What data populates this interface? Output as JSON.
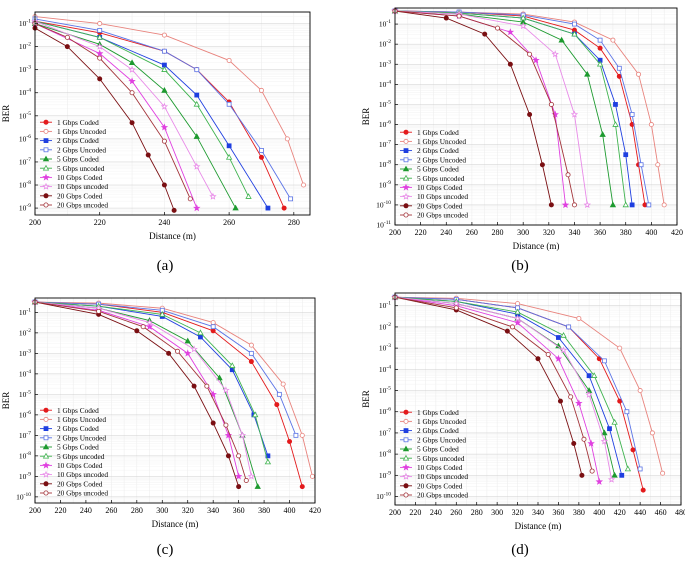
{
  "chart_data": [
    {
      "panel_label": "(a)",
      "type": "line",
      "xlabel": "Distance (m)",
      "ylabel": "BER",
      "xlim": [
        200,
        285
      ],
      "ylim_exp": [
        -9.3,
        -0.5
      ],
      "xticks": [
        200,
        220,
        240,
        260,
        280
      ],
      "yticks_exp": [
        -1,
        -2,
        -3,
        -4,
        -5,
        -6,
        -7,
        -8,
        -9
      ],
      "legend_position": "lower-left",
      "grid": true,
      "series": [
        {
          "name": "1 Gbps Coded",
          "color": "#e31a1c",
          "marker": "filled-circle",
          "x": [
            200,
            220,
            240,
            250,
            260,
            270,
            277
          ],
          "y_exp": [
            -0.9,
            -1.4,
            -2.2,
            -3.0,
            -4.4,
            -6.8,
            -9.0
          ]
        },
        {
          "name": "1 Gbps Uncoded",
          "color": "#e8837d",
          "marker": "open-circle",
          "x": [
            200,
            220,
            240,
            260,
            270,
            278,
            283
          ],
          "y_exp": [
            -0.7,
            -1.0,
            -1.5,
            -2.6,
            -3.9,
            -6.0,
            -8.0
          ]
        },
        {
          "name": "2 Gbps Coded",
          "color": "#1f3fe0",
          "marker": "filled-square",
          "x": [
            200,
            220,
            240,
            250,
            260,
            272
          ],
          "y_exp": [
            -0.9,
            -1.6,
            -2.8,
            -4.1,
            -6.3,
            -9.0
          ]
        },
        {
          "name": "2 Gbps Uncoded",
          "color": "#5b74e6",
          "marker": "open-square",
          "x": [
            200,
            220,
            240,
            250,
            260,
            270,
            279
          ],
          "y_exp": [
            -0.8,
            -1.3,
            -2.2,
            -3.0,
            -4.5,
            -6.5,
            -8.6
          ]
        },
        {
          "name": "5 Gbps Coded",
          "color": "#1d9a2f",
          "marker": "filled-triangle",
          "x": [
            200,
            220,
            230,
            240,
            250,
            262
          ],
          "y_exp": [
            -1.0,
            -1.9,
            -2.7,
            -3.9,
            -5.9,
            -9.0
          ]
        },
        {
          "name": "5 Gbps uncoded",
          "color": "#3fb34f",
          "marker": "open-triangle",
          "x": [
            200,
            220,
            240,
            250,
            260,
            266
          ],
          "y_exp": [
            -0.9,
            -1.6,
            -3.0,
            -4.5,
            -6.8,
            -8.5
          ]
        },
        {
          "name": "10 Gbps Coded",
          "color": "#e040e0",
          "marker": "filled-star",
          "x": [
            200,
            220,
            230,
            240,
            250
          ],
          "y_exp": [
            -1.0,
            -2.3,
            -3.5,
            -5.5,
            -9.0
          ]
        },
        {
          "name": "10 Gbps uncoded",
          "color": "#e88ae8",
          "marker": "open-star",
          "x": [
            200,
            220,
            230,
            240,
            250,
            255
          ],
          "y_exp": [
            -0.9,
            -2.0,
            -3.0,
            -4.6,
            -7.2,
            -8.5
          ]
        },
        {
          "name": "20 Gbps Coded",
          "color": "#7a0f12",
          "marker": "filled-circle",
          "x": [
            200,
            210,
            220,
            230,
            235,
            240,
            243
          ],
          "y_exp": [
            -1.2,
            -2.0,
            -3.4,
            -5.3,
            -6.7,
            -8.0,
            -9.1
          ]
        },
        {
          "name": "20 Gbps uncoded",
          "color": "#a3343a",
          "marker": "open-circle",
          "x": [
            200,
            210,
            220,
            230,
            240,
            248
          ],
          "y_exp": [
            -1.0,
            -1.6,
            -2.5,
            -4.0,
            -6.1,
            -8.6
          ]
        }
      ]
    },
    {
      "panel_label": "(b)",
      "type": "line",
      "xlabel": "Distance (m)",
      "ylabel": "BER",
      "xlim": [
        200,
        420
      ],
      "ylim_exp": [
        -11,
        -0.2
      ],
      "xticks": [
        200,
        220,
        240,
        260,
        280,
        300,
        320,
        340,
        360,
        380,
        400,
        420
      ],
      "yticks_exp": [
        -1,
        -2,
        -3,
        -4,
        -5,
        -6,
        -7,
        -8,
        -9,
        -10,
        -11
      ],
      "legend_position": "lower-left",
      "grid": true,
      "series": [
        {
          "name": "1 Gbps Coded",
          "color": "#e31a1c",
          "marker": "filled-circle",
          "x": [
            200,
            250,
            300,
            340,
            360,
            375,
            385,
            390,
            395
          ],
          "y_exp": [
            -0.35,
            -0.4,
            -0.6,
            -1.3,
            -2.2,
            -3.6,
            -6.0,
            -8.0,
            -10.0
          ]
        },
        {
          "name": "1 Gbps Uncoded",
          "color": "#e8837d",
          "marker": "open-circle",
          "x": [
            200,
            250,
            300,
            340,
            370,
            390,
            400,
            405,
            410
          ],
          "y_exp": [
            -0.35,
            -0.4,
            -0.5,
            -0.9,
            -1.8,
            -3.5,
            -6.0,
            -8.0,
            -10.0
          ]
        },
        {
          "name": "2 Gbps Coded",
          "color": "#1f3fe0",
          "marker": "filled-square",
          "x": [
            200,
            250,
            300,
            340,
            360,
            372,
            380,
            385
          ],
          "y_exp": [
            -0.35,
            -0.45,
            -0.7,
            -1.5,
            -2.8,
            -5.0,
            -7.5,
            -10.0
          ]
        },
        {
          "name": "2 Gbps Uncoded",
          "color": "#5b74e6",
          "marker": "open-square",
          "x": [
            200,
            250,
            300,
            340,
            360,
            375,
            385,
            392,
            398
          ],
          "y_exp": [
            -0.35,
            -0.4,
            -0.55,
            -1.0,
            -1.8,
            -3.2,
            -5.5,
            -8.0,
            -10.0
          ]
        },
        {
          "name": "5 Gbps Coded",
          "color": "#1d9a2f",
          "marker": "filled-triangle",
          "x": [
            200,
            250,
            300,
            330,
            350,
            362,
            370
          ],
          "y_exp": [
            -0.35,
            -0.5,
            -0.9,
            -1.8,
            -3.5,
            -6.5,
            -10.0
          ]
        },
        {
          "name": "5 Gbps uncoded",
          "color": "#3fb34f",
          "marker": "open-triangle",
          "x": [
            200,
            250,
            300,
            340,
            360,
            372,
            380
          ],
          "y_exp": [
            -0.35,
            -0.45,
            -0.7,
            -1.5,
            -3.0,
            -6.0,
            -10.0
          ]
        },
        {
          "name": "10 Gbps Coded",
          "color": "#e040e0",
          "marker": "filled-star",
          "x": [
            200,
            250,
            290,
            310,
            325,
            333
          ],
          "y_exp": [
            -0.35,
            -0.6,
            -1.4,
            -2.8,
            -5.5,
            -10.0
          ]
        },
        {
          "name": "10 Gbps uncoded",
          "color": "#e88ae8",
          "marker": "open-star",
          "x": [
            200,
            250,
            300,
            325,
            340,
            350
          ],
          "y_exp": [
            -0.35,
            -0.5,
            -1.1,
            -2.5,
            -5.5,
            -10.0
          ]
        },
        {
          "name": "20 Gbps Coded",
          "color": "#7a0f12",
          "marker": "filled-circle",
          "x": [
            200,
            240,
            270,
            290,
            305,
            315,
            322
          ],
          "y_exp": [
            -0.35,
            -0.7,
            -1.5,
            -3.0,
            -5.5,
            -8.0,
            -10.0
          ]
        },
        {
          "name": "20 Gbps uncoded",
          "color": "#a3343a",
          "marker": "open-circle",
          "x": [
            200,
            250,
            280,
            305,
            322,
            335,
            340
          ],
          "y_exp": [
            -0.35,
            -0.6,
            -1.2,
            -2.5,
            -5.0,
            -8.5,
            -10.0
          ]
        }
      ]
    },
    {
      "panel_label": "(c)",
      "type": "line",
      "xlabel": "Distance (m)",
      "ylabel": "BER",
      "xlim": [
        200,
        420
      ],
      "ylim_exp": [
        -10.3,
        -0.3
      ],
      "xticks": [
        200,
        220,
        240,
        260,
        280,
        300,
        320,
        340,
        360,
        380,
        400,
        420
      ],
      "yticks_exp": [
        -1,
        -2,
        -3,
        -4,
        -5,
        -6,
        -7,
        -8,
        -9,
        -10
      ],
      "legend_position": "lower-left",
      "grid": true,
      "series": [
        {
          "name": "1 Gbps Coded",
          "color": "#e31a1c",
          "marker": "filled-circle",
          "x": [
            200,
            250,
            300,
            340,
            370,
            390,
            400,
            410
          ],
          "y_exp": [
            -0.5,
            -0.6,
            -1.0,
            -1.9,
            -3.4,
            -5.5,
            -7.3,
            -9.5
          ]
        },
        {
          "name": "1 Gbps Uncoded",
          "color": "#e8837d",
          "marker": "open-circle",
          "x": [
            200,
            250,
            300,
            340,
            370,
            395,
            410,
            418
          ],
          "y_exp": [
            -0.5,
            -0.55,
            -0.8,
            -1.5,
            -2.6,
            -4.5,
            -7.0,
            -9.0
          ]
        },
        {
          "name": "2 Gbps Coded",
          "color": "#1f3fe0",
          "marker": "filled-square",
          "x": [
            200,
            250,
            300,
            330,
            355,
            372,
            383
          ],
          "y_exp": [
            -0.5,
            -0.7,
            -1.2,
            -2.2,
            -3.8,
            -6.0,
            -8.0
          ]
        },
        {
          "name": "2 Gbps Uncoded",
          "color": "#5b74e6",
          "marker": "open-square",
          "x": [
            200,
            250,
            300,
            340,
            370,
            392,
            405
          ],
          "y_exp": [
            -0.5,
            -0.6,
            -0.9,
            -1.7,
            -3.0,
            -5.0,
            -7.0
          ]
        },
        {
          "name": "5 Gbps Coded",
          "color": "#1d9a2f",
          "marker": "filled-triangle",
          "x": [
            200,
            250,
            290,
            320,
            345,
            363,
            375
          ],
          "y_exp": [
            -0.5,
            -0.8,
            -1.4,
            -2.4,
            -4.2,
            -7.0,
            -9.5
          ]
        },
        {
          "name": "5 Gbps uncoded",
          "color": "#3fb34f",
          "marker": "open-triangle",
          "x": [
            200,
            250,
            300,
            330,
            355,
            373,
            383
          ],
          "y_exp": [
            -0.5,
            -0.7,
            -1.1,
            -2.0,
            -3.6,
            -6.0,
            -8.3
          ]
        },
        {
          "name": "10 Gbps Coded",
          "color": "#e040e0",
          "marker": "filled-star",
          "x": [
            200,
            250,
            290,
            320,
            340,
            352,
            360
          ],
          "y_exp": [
            -0.5,
            -0.9,
            -1.7,
            -3.0,
            -5.0,
            -7.0,
            -9.0
          ]
        },
        {
          "name": "10 Gbps uncoded",
          "color": "#e88ae8",
          "marker": "open-star",
          "x": [
            200,
            250,
            290,
            325,
            350,
            363,
            370
          ],
          "y_exp": [
            -0.5,
            -0.8,
            -1.5,
            -2.8,
            -4.8,
            -7.0,
            -9.0
          ]
        },
        {
          "name": "20 Gbps Coded",
          "color": "#7a0f12",
          "marker": "filled-circle",
          "x": [
            200,
            250,
            280,
            305,
            325,
            340,
            352,
            360
          ],
          "y_exp": [
            -0.5,
            -1.1,
            -1.9,
            -3.0,
            -4.6,
            -6.4,
            -8.0,
            -9.5
          ]
        },
        {
          "name": "20 Gbps uncoded",
          "color": "#a3343a",
          "marker": "open-circle",
          "x": [
            200,
            250,
            285,
            312,
            335,
            350,
            360,
            366
          ],
          "y_exp": [
            -0.5,
            -0.95,
            -1.7,
            -2.9,
            -4.6,
            -6.5,
            -8.0,
            -9.2
          ]
        }
      ]
    },
    {
      "panel_label": "(d)",
      "type": "line",
      "xlabel": "Distance (m)",
      "ylabel": "BER",
      "xlim": [
        200,
        480
      ],
      "ylim_exp": [
        -10.4,
        -0.4
      ],
      "xticks": [
        200,
        220,
        240,
        260,
        280,
        300,
        320,
        340,
        360,
        380,
        400,
        420,
        440,
        460,
        480
      ],
      "yticks_exp": [
        -1,
        -2,
        -3,
        -4,
        -5,
        -6,
        -7,
        -8,
        -9,
        -10
      ],
      "legend_position": "lower-left",
      "grid": true,
      "series": [
        {
          "name": "1 Gbps Coded",
          "color": "#e31a1c",
          "marker": "filled-circle",
          "x": [
            200,
            260,
            320,
            370,
            400,
            420,
            433,
            443
          ],
          "y_exp": [
            -0.6,
            -0.7,
            -1.1,
            -2.0,
            -3.5,
            -5.5,
            -7.8,
            -9.7
          ]
        },
        {
          "name": "1 Gbps Uncoded",
          "color": "#e8837d",
          "marker": "open-circle",
          "x": [
            200,
            260,
            320,
            380,
            420,
            440,
            452,
            462
          ],
          "y_exp": [
            -0.6,
            -0.65,
            -0.9,
            -1.6,
            -3.0,
            -5.0,
            -7.0,
            -8.9
          ]
        },
        {
          "name": "2 Gbps Coded",
          "color": "#1f3fe0",
          "marker": "filled-square",
          "x": [
            200,
            260,
            320,
            360,
            390,
            410,
            422
          ],
          "y_exp": [
            -0.6,
            -0.8,
            -1.4,
            -2.5,
            -4.3,
            -6.8,
            -9.0
          ]
        },
        {
          "name": "2 Gbps Uncoded",
          "color": "#5b74e6",
          "marker": "open-square",
          "x": [
            200,
            260,
            320,
            370,
            405,
            427,
            440
          ],
          "y_exp": [
            -0.6,
            -0.7,
            -1.1,
            -2.0,
            -3.6,
            -6.0,
            -8.7
          ]
        },
        {
          "name": "5 Gbps Coded",
          "color": "#1d9a2f",
          "marker": "filled-triangle",
          "x": [
            200,
            260,
            320,
            360,
            390,
            405,
            415
          ],
          "y_exp": [
            -0.6,
            -0.9,
            -1.6,
            -2.9,
            -5.0,
            -7.0,
            -9.0
          ]
        },
        {
          "name": "5 Gbps uncoded",
          "color": "#3fb34f",
          "marker": "open-triangle",
          "x": [
            200,
            260,
            320,
            365,
            395,
            415,
            428
          ],
          "y_exp": [
            -0.6,
            -0.8,
            -1.3,
            -2.4,
            -4.3,
            -6.5,
            -8.7
          ]
        },
        {
          "name": "10 Gbps Coded",
          "color": "#e040e0",
          "marker": "filled-star",
          "x": [
            200,
            260,
            320,
            360,
            380,
            392,
            400
          ],
          "y_exp": [
            -0.6,
            -1.0,
            -1.8,
            -3.5,
            -5.6,
            -7.5,
            -9.3
          ]
        },
        {
          "name": "10 Gbps uncoded",
          "color": "#e88ae8",
          "marker": "open-star",
          "x": [
            200,
            260,
            320,
            365,
            390,
            405,
            412
          ],
          "y_exp": [
            -0.6,
            -0.9,
            -1.6,
            -3.1,
            -5.2,
            -7.4,
            -9.2
          ]
        },
        {
          "name": "20 Gbps Coded",
          "color": "#7a0f12",
          "marker": "filled-circle",
          "x": [
            200,
            260,
            310,
            340,
            362,
            375,
            383
          ],
          "y_exp": [
            -0.6,
            -1.2,
            -2.2,
            -3.5,
            -5.5,
            -7.5,
            -9.0
          ]
        },
        {
          "name": "20 Gbps uncoded",
          "color": "#a3343a",
          "marker": "open-circle",
          "x": [
            200,
            260,
            315,
            350,
            372,
            385,
            393
          ],
          "y_exp": [
            -0.6,
            -1.1,
            -2.0,
            -3.3,
            -5.3,
            -7.3,
            -8.8
          ]
        }
      ]
    }
  ]
}
